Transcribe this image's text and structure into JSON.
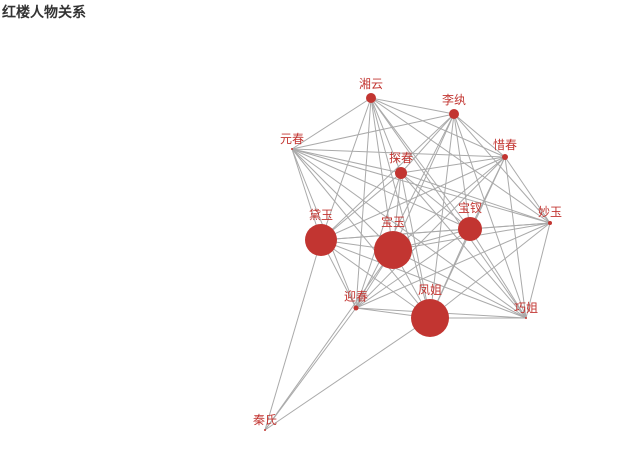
{
  "title": "红楼人物关系",
  "chart_data": {
    "type": "graph",
    "title": "红楼人物关系",
    "node_color": "#c23531",
    "edge_color": "#aaaaaa",
    "label_color": "#c23531",
    "nodes": [
      {
        "name": "湘云",
        "size": 5
      },
      {
        "name": "李纨",
        "size": 5
      },
      {
        "name": "元春",
        "size": 1
      },
      {
        "name": "惜春",
        "size": 3
      },
      {
        "name": "探春",
        "size": 6
      },
      {
        "name": "妙玉",
        "size": 2
      },
      {
        "name": "黛玉",
        "size": 16
      },
      {
        "name": "宝玉",
        "size": 19
      },
      {
        "name": "宝钗",
        "size": 12
      },
      {
        "name": "迎春",
        "size": 2
      },
      {
        "name": "凤姐",
        "size": 19
      },
      {
        "name": "巧姐",
        "size": 1
      },
      {
        "name": "秦氏",
        "size": 1
      }
    ],
    "edges": [
      [
        "湘云",
        "李纨"
      ],
      [
        "湘云",
        "元春"
      ],
      [
        "湘云",
        "惜春"
      ],
      [
        "湘云",
        "探春"
      ],
      [
        "湘云",
        "妙玉"
      ],
      [
        "湘云",
        "黛玉"
      ],
      [
        "湘云",
        "宝玉"
      ],
      [
        "湘云",
        "宝钗"
      ],
      [
        "湘云",
        "迎春"
      ],
      [
        "湘云",
        "凤姐"
      ],
      [
        "湘云",
        "巧姐"
      ],
      [
        "李纨",
        "元春"
      ],
      [
        "李纨",
        "惜春"
      ],
      [
        "李纨",
        "探春"
      ],
      [
        "李纨",
        "妙玉"
      ],
      [
        "李纨",
        "黛玉"
      ],
      [
        "李纨",
        "宝玉"
      ],
      [
        "李纨",
        "宝钗"
      ],
      [
        "李纨",
        "迎春"
      ],
      [
        "李纨",
        "凤姐"
      ],
      [
        "李纨",
        "巧姐"
      ],
      [
        "元春",
        "惜春"
      ],
      [
        "元春",
        "探春"
      ],
      [
        "元春",
        "妙玉"
      ],
      [
        "元春",
        "黛玉"
      ],
      [
        "元春",
        "宝玉"
      ],
      [
        "元春",
        "宝钗"
      ],
      [
        "元春",
        "迎春"
      ],
      [
        "元春",
        "凤姐"
      ],
      [
        "元春",
        "巧姐"
      ],
      [
        "惜春",
        "探春"
      ],
      [
        "惜春",
        "妙玉"
      ],
      [
        "惜春",
        "黛玉"
      ],
      [
        "惜春",
        "宝玉"
      ],
      [
        "惜春",
        "宝钗"
      ],
      [
        "惜春",
        "迎春"
      ],
      [
        "惜春",
        "凤姐"
      ],
      [
        "惜春",
        "巧姐"
      ],
      [
        "探春",
        "妙玉"
      ],
      [
        "探春",
        "黛玉"
      ],
      [
        "探春",
        "宝玉"
      ],
      [
        "探春",
        "宝钗"
      ],
      [
        "探春",
        "迎春"
      ],
      [
        "探春",
        "凤姐"
      ],
      [
        "探春",
        "巧姐"
      ],
      [
        "妙玉",
        "黛玉"
      ],
      [
        "妙玉",
        "宝玉"
      ],
      [
        "妙玉",
        "宝钗"
      ],
      [
        "妙玉",
        "迎春"
      ],
      [
        "妙玉",
        "凤姐"
      ],
      [
        "妙玉",
        "巧姐"
      ],
      [
        "黛玉",
        "宝玉"
      ],
      [
        "黛玉",
        "宝钗"
      ],
      [
        "黛玉",
        "迎春"
      ],
      [
        "黛玉",
        "凤姐"
      ],
      [
        "黛玉",
        "巧姐"
      ],
      [
        "宝玉",
        "宝钗"
      ],
      [
        "宝玉",
        "迎春"
      ],
      [
        "宝玉",
        "凤姐"
      ],
      [
        "宝玉",
        "巧姐"
      ],
      [
        "宝钗",
        "迎春"
      ],
      [
        "宝钗",
        "凤姐"
      ],
      [
        "宝钗",
        "巧姐"
      ],
      [
        "迎春",
        "凤姐"
      ],
      [
        "迎春",
        "巧姐"
      ],
      [
        "凤姐",
        "巧姐"
      ],
      [
        "秦氏",
        "黛玉"
      ],
      [
        "秦氏",
        "迎春"
      ],
      [
        "秦氏",
        "宝玉"
      ],
      [
        "秦氏",
        "凤姐"
      ]
    ]
  }
}
